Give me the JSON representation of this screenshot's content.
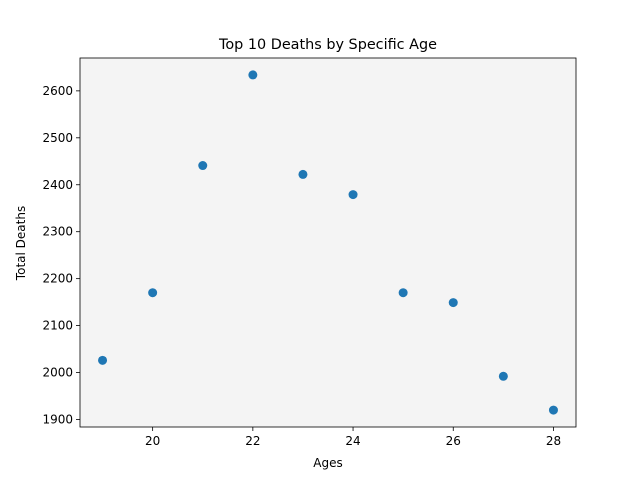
{
  "chart_data": {
    "type": "scatter",
    "title": "Top 10 Deaths by Specific Age",
    "xlabel": "Ages",
    "ylabel": "Total Deaths",
    "x": [
      19,
      20,
      21,
      22,
      23,
      24,
      25,
      26,
      27,
      28
    ],
    "y": [
      2026,
      2170,
      2441,
      2634,
      2422,
      2379,
      2170,
      2149,
      1992,
      1920
    ],
    "xlim": [
      18.55,
      28.45
    ],
    "ylim": [
      1884,
      2670
    ],
    "xticks": [
      20,
      22,
      24,
      26,
      28
    ],
    "yticks": [
      1900,
      2000,
      2100,
      2200,
      2300,
      2400,
      2500,
      2600
    ],
    "grid": false,
    "colors": {
      "marker": "#1f77b4",
      "plot_background": "#f4f4f4",
      "axis": "#000000"
    }
  }
}
